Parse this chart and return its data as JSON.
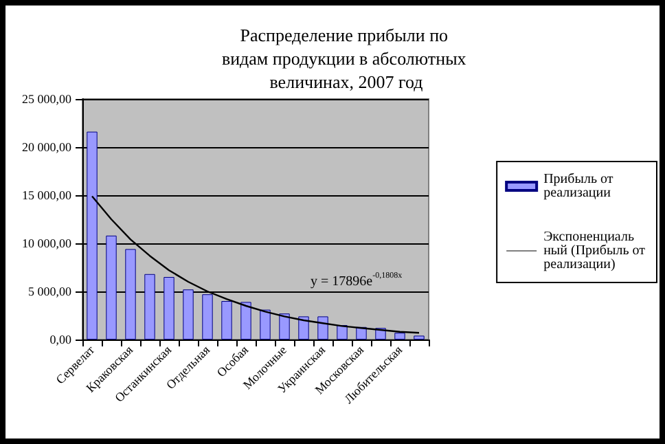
{
  "chart_data": {
    "type": "bar",
    "title": "Распределение прибыли по видам продукции в абсолютных величинах, 2007 год",
    "categories": [
      "Сервелат",
      null,
      "Краковская",
      null,
      "Останкинская",
      null,
      "Отдельная",
      null,
      "Особая",
      null,
      "Молочные",
      null,
      "Украинская",
      null,
      "Московская",
      null,
      "Любительская",
      null
    ],
    "series": [
      {
        "name": "Прибыль от реализации",
        "color": "#9999ff",
        "values": [
          21600,
          10800,
          9400,
          6800,
          6500,
          5200,
          4700,
          4000,
          3900,
          3100,
          2700,
          2400,
          2400,
          1500,
          1300,
          1200,
          700,
          400
        ]
      },
      {
        "name": "Экспоненциальный (Прибыль от реализации)",
        "type": "line",
        "color": "#000000",
        "values": [
          14900,
          12500,
          10400,
          8700,
          7200,
          6000,
          5000,
          4200,
          3500,
          2900,
          2400,
          2000,
          1700,
          1400,
          1200,
          1000,
          800,
          700
        ]
      }
    ],
    "annotations": [
      "y = 17896e$^{-0,1808x}$"
    ],
    "ylim": [
      0,
      25000
    ],
    "yticks": [
      {
        "value": 0,
        "label": "0,00"
      },
      {
        "value": 5000,
        "label": "5 000,00"
      },
      {
        "value": 10000,
        "label": "10 000,00"
      },
      {
        "value": 15000,
        "label": "15 000,00"
      },
      {
        "value": 20000,
        "label": "20 000,00"
      },
      {
        "value": 25000,
        "label": "25 000,00"
      }
    ],
    "grid": "y",
    "legend": "right",
    "marker": "none"
  }
}
